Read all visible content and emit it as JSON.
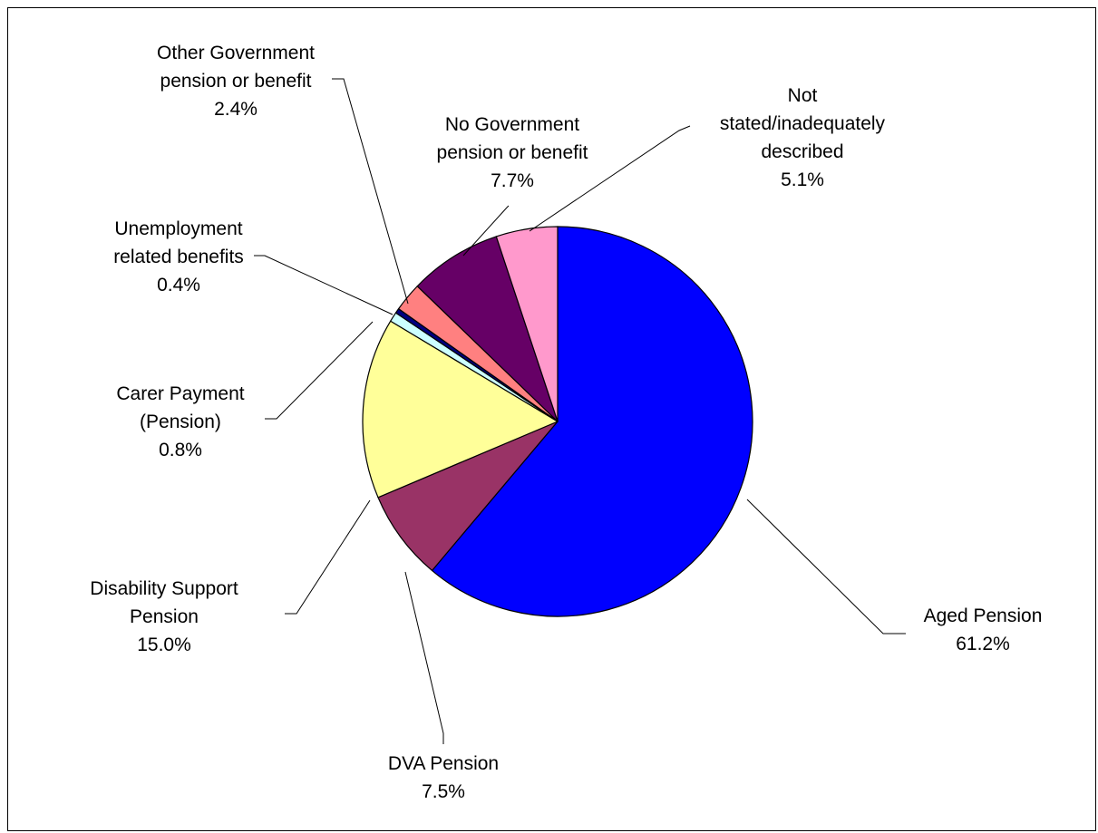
{
  "chart_data": {
    "type": "pie",
    "title": "",
    "start_angle_deg": 0,
    "direction": "clockwise",
    "slices": [
      {
        "name": "Aged Pension",
        "value": 61.2,
        "label": "61.2%",
        "color": "#0000FF"
      },
      {
        "name": "DVA Pension",
        "value": 7.5,
        "label": "7.5%",
        "color": "#993366"
      },
      {
        "name": "Disability Support Pension",
        "value": 15.0,
        "label": "15.0%",
        "color": "#FFFF99"
      },
      {
        "name": "Carer Payment (Pension)",
        "value": 0.8,
        "label": "0.8%",
        "color": "#CCFFFF"
      },
      {
        "name": "Unemployment related benefits",
        "value": 0.4,
        "label": "0.4%",
        "color": "#000080"
      },
      {
        "name": "Other Government pension or benefit",
        "value": 2.4,
        "label": "2.4%",
        "color": "#FF8080"
      },
      {
        "name": "No Government pension or benefit",
        "value": 7.7,
        "label": "7.7%",
        "color": "#660066"
      },
      {
        "name": "Not stated/inadequately described",
        "value": 5.1,
        "label": "5.1%",
        "color": "#FF99CC"
      }
    ],
    "data_labels": [
      {
        "lines": [
          "Aged Pension",
          "61.2%"
        ]
      },
      {
        "lines": [
          "DVA Pension",
          "7.5%"
        ]
      },
      {
        "lines": [
          "Disability Support",
          "Pension",
          "15.0%"
        ]
      },
      {
        "lines": [
          "Carer Payment",
          "(Pension)",
          "0.8%"
        ]
      },
      {
        "lines": [
          "Unemployment",
          "related benefits",
          "0.4%"
        ]
      },
      {
        "lines": [
          "Other Government",
          "pension or benefit",
          "2.4%"
        ]
      },
      {
        "lines": [
          "No Government",
          "pension or benefit",
          "7.7%"
        ]
      },
      {
        "lines": [
          "Not",
          "stated/inadequately",
          "described",
          "5.1%"
        ]
      }
    ]
  }
}
